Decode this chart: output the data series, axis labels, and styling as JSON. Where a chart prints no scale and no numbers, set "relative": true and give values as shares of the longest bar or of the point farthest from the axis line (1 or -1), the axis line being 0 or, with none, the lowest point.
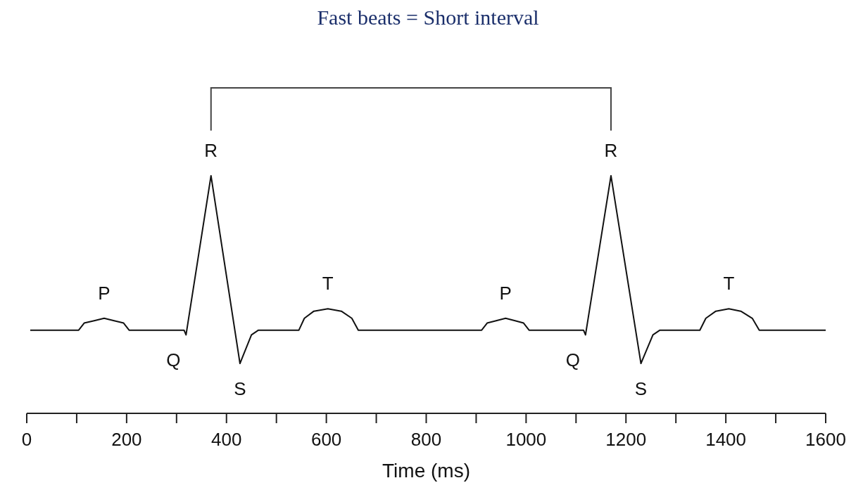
{
  "chart_data": {
    "type": "line",
    "title": "Fast beats = Short interval",
    "xlabel": "Time (ms)",
    "relative": true,
    "grid": false,
    "legend": false,
    "marker": "none",
    "line_style": "solid",
    "x": [
      7,
      104,
      115,
      135,
      155,
      175,
      194,
      205,
      315,
      319,
      369,
      427,
      450,
      464,
      545,
      556,
      575,
      603,
      630,
      651,
      664,
      911,
      922,
      940,
      959,
      978,
      995,
      1006,
      1115,
      1119,
      1170,
      1230,
      1254,
      1268,
      1348,
      1360,
      1380,
      1406,
      1430,
      1453,
      1467,
      1600
    ],
    "series": [
      {
        "color": "#111111",
        "values": [
          0.35,
          0.35,
          0.38,
          0.39,
          0.4,
          0.39,
          0.38,
          0.35,
          0.35,
          0.33,
          1,
          0.21,
          0.33,
          0.35,
          0.35,
          0.4,
          0.43,
          0.44,
          0.43,
          0.4,
          0.35,
          0.35,
          0.38,
          0.39,
          0.4,
          0.39,
          0.38,
          0.35,
          0.35,
          0.33,
          1,
          0.21,
          0.33,
          0.35,
          0.35,
          0.4,
          0.43,
          0.44,
          0.43,
          0.4,
          0.35,
          0.35
        ]
      }
    ],
    "xlim": [
      0,
      1600
    ],
    "xticks": [
      0,
      {
        "value": 100,
        "label": null
      },
      200,
      {
        "value": 300,
        "label": null
      },
      400,
      {
        "value": 500,
        "label": null
      },
      600,
      {
        "value": 700,
        "label": null
      },
      800,
      {
        "value": 900,
        "label": null
      },
      1000,
      {
        "value": 1100,
        "label": null
      },
      1200,
      {
        "value": 1300,
        "label": null
      },
      1400,
      {
        "value": 1500,
        "label": null
      },
      1600
    ],
    "annotations": [
      {
        "text": "P",
        "x": 155,
        "y": 0.4
      },
      {
        "text": "Q",
        "x": 319,
        "y": 0.33
      },
      {
        "text": "R",
        "x": 369,
        "y": 1
      },
      {
        "text": "S",
        "x": 427,
        "y": 0.21
      },
      {
        "text": "T",
        "x": 603,
        "y": 0.44
      },
      {
        "text": "P",
        "x": 959,
        "y": 0.4
      },
      {
        "text": "Q",
        "x": 1119,
        "y": 0.33
      },
      {
        "text": "R",
        "x": 1170,
        "y": 1
      },
      {
        "text": "S",
        "x": 1230,
        "y": 0.21
      },
      {
        "text": "T",
        "x": 1406,
        "y": 0.44
      }
    ]
  }
}
